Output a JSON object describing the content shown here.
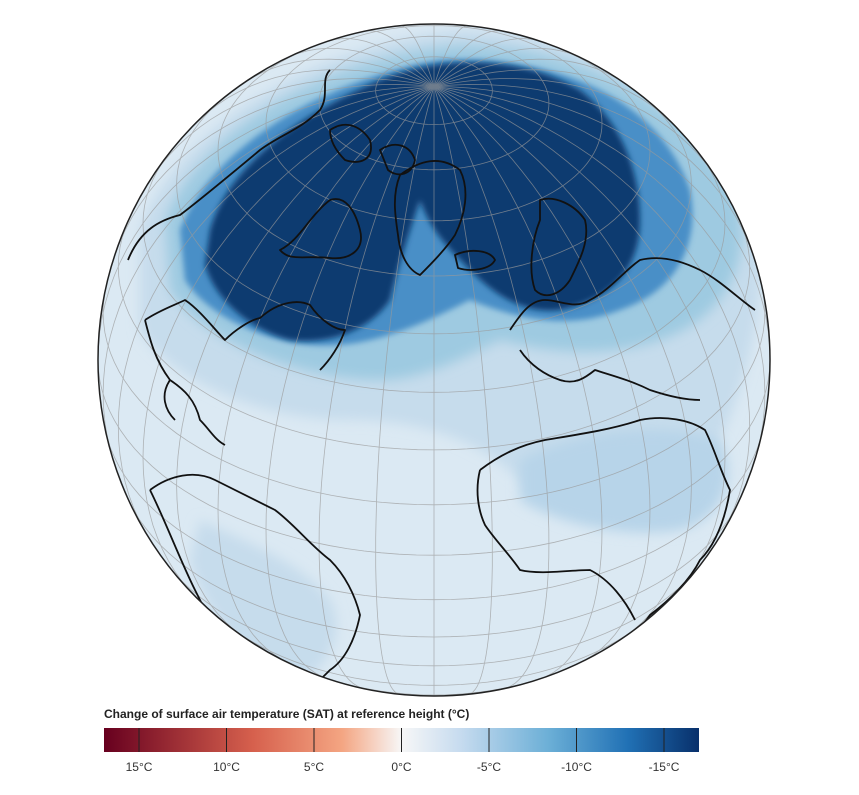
{
  "map": {
    "projection": "orthographic",
    "center": "North Atlantic",
    "graticule": true,
    "coastlines": true
  },
  "legend": {
    "title": "Change of surface air temperature (SAT) at reference height (°C)",
    "ticks": [
      {
        "value": 15,
        "label": "15°C"
      },
      {
        "value": 10,
        "label": "10°C"
      },
      {
        "value": 5,
        "label": "5°C"
      },
      {
        "value": 0,
        "label": "0°C"
      },
      {
        "value": -5,
        "label": "-5°C"
      },
      {
        "value": -10,
        "label": "-10°C"
      },
      {
        "value": -15,
        "label": "-15°C"
      }
    ],
    "range": [
      17,
      -17
    ],
    "colors": {
      "warm_end": "#67001f",
      "warm_mid": "#e58267",
      "neutral": "#f7f7f7",
      "cool_mid": "#6aaed6",
      "cool_end": "#08306b"
    }
  },
  "palette": {
    "ocean_base": "#dbe9f3",
    "light": "#c6dcec",
    "medium": "#9ecae1",
    "strong": "#4a8fc7",
    "deep": "#08306b",
    "coast": "#111111",
    "grid": "#9a9a9a"
  }
}
